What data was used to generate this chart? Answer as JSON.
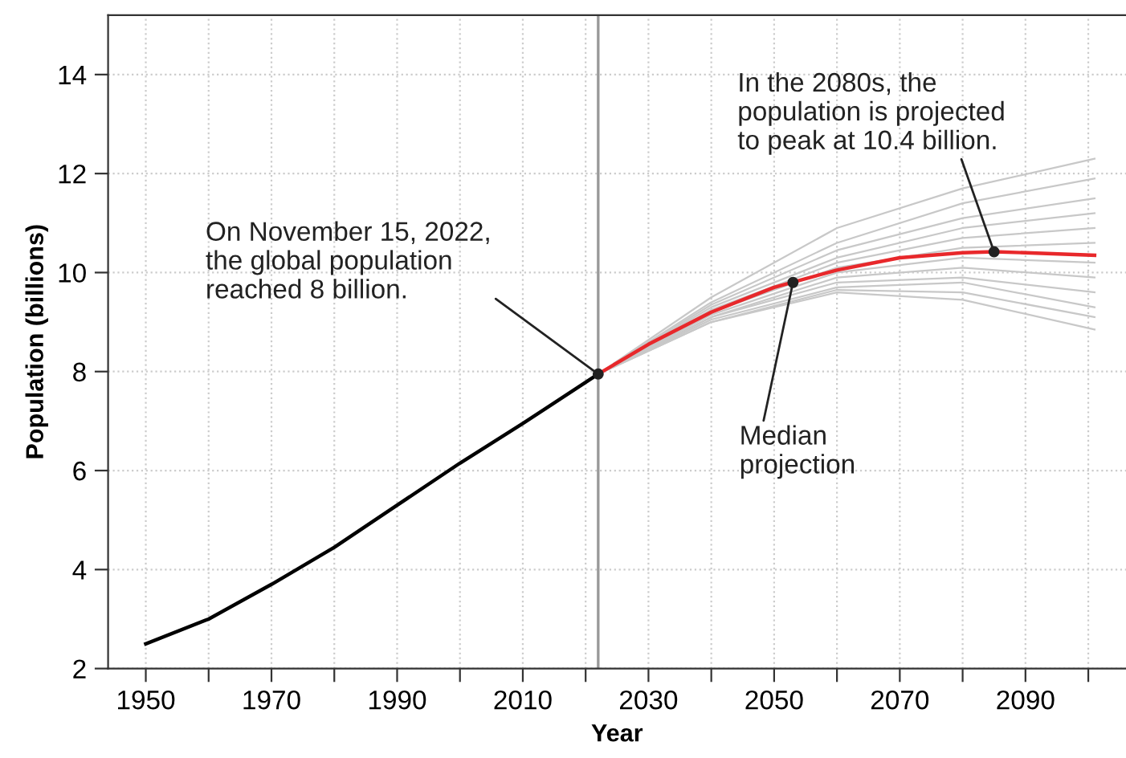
{
  "chart_data": {
    "type": "line",
    "xlabel": "Year",
    "ylabel": "Population (billions)",
    "xlim": [
      1944,
      2106
    ],
    "ylim": [
      2,
      15.2
    ],
    "xticks": [
      1950,
      {
        "value": 1960,
        "label": null
      },
      1970,
      {
        "value": 1980,
        "label": null
      },
      1990,
      {
        "value": 2000,
        "label": null
      },
      2010,
      {
        "value": 2020,
        "label": null
      },
      2030,
      {
        "value": 2040,
        "label": null
      },
      2050,
      {
        "value": 2060,
        "label": null
      },
      2070,
      {
        "value": 2080,
        "label": null
      },
      2090,
      {
        "value": 2100,
        "label": null
      }
    ],
    "yticks": [
      2,
      4,
      6,
      8,
      10,
      12,
      14
    ],
    "grid": true,
    "line_style": "solid",
    "ref_lines": [
      {
        "axis": "x",
        "value": 2022,
        "label": null,
        "color": "#999999"
      }
    ],
    "series": [
      {
        "color": "#c8c8c8",
        "x": [
          2022,
          2040,
          2060,
          2080,
          2101
        ],
        "values": [
          7.95,
          9.5,
          10.9,
          11.7,
          12.3
        ]
      },
      {
        "color": "#c8c8c8",
        "x": [
          2022,
          2040,
          2060,
          2080,
          2101
        ],
        "values": [
          7.95,
          9.4,
          10.6,
          11.4,
          11.9
        ]
      },
      {
        "color": "#c8c8c8",
        "x": [
          2022,
          2040,
          2060,
          2080,
          2101
        ],
        "values": [
          7.95,
          9.35,
          10.45,
          11.1,
          11.5
        ]
      },
      {
        "color": "#c8c8c8",
        "x": [
          2022,
          2040,
          2060,
          2080,
          2101
        ],
        "values": [
          7.95,
          9.3,
          10.3,
          10.9,
          11.2
        ]
      },
      {
        "color": "#c8c8c8",
        "x": [
          2022,
          2040,
          2060,
          2080,
          2101
        ],
        "values": [
          7.95,
          9.25,
          10.2,
          10.7,
          10.9
        ]
      },
      {
        "color": "#c8c8c8",
        "x": [
          2022,
          2040,
          2060,
          2080,
          2101
        ],
        "values": [
          7.95,
          9.2,
          10.1,
          10.5,
          10.6
        ]
      },
      {
        "color": "#c8c8c8",
        "x": [
          2022,
          2040,
          2060,
          2080,
          2101
        ],
        "values": [
          7.95,
          9.15,
          10.0,
          10.3,
          10.2
        ]
      },
      {
        "color": "#c8c8c8",
        "x": [
          2022,
          2040,
          2060,
          2080,
          2101
        ],
        "values": [
          7.95,
          9.1,
          9.9,
          10.1,
          9.9
        ]
      },
      {
        "color": "#c8c8c8",
        "x": [
          2022,
          2040,
          2060,
          2080,
          2101
        ],
        "values": [
          7.95,
          9.1,
          9.8,
          9.9,
          9.6
        ]
      },
      {
        "color": "#c8c8c8",
        "x": [
          2022,
          2040,
          2060,
          2080,
          2101
        ],
        "values": [
          7.95,
          9.05,
          9.7,
          9.8,
          9.3
        ]
      },
      {
        "color": "#c8c8c8",
        "x": [
          2022,
          2040,
          2060,
          2080,
          2101
        ],
        "values": [
          7.95,
          9.0,
          9.65,
          9.6,
          9.1
        ]
      },
      {
        "color": "#c8c8c8",
        "x": [
          2022,
          2040,
          2060,
          2080,
          2101
        ],
        "values": [
          7.95,
          9.0,
          9.6,
          9.45,
          8.85
        ]
      },
      {
        "color": "#000000",
        "x": [
          1950,
          1960,
          1970,
          1980,
          1990,
          2000,
          2010,
          2022
        ],
        "values": [
          2.5,
          3.0,
          3.7,
          4.45,
          5.3,
          6.15,
          6.95,
          7.95
        ]
      },
      {
        "color": "#e8282b",
        "x": [
          2022,
          2030,
          2040,
          2050,
          2060,
          2070,
          2080,
          2085,
          2090,
          2101
        ],
        "values": [
          7.95,
          8.55,
          9.2,
          9.7,
          10.05,
          10.3,
          10.4,
          10.42,
          10.4,
          10.35
        ]
      }
    ],
    "annotations": [
      {
        "text": "On November 15, 2022,\nthe global population\nreached 8 billion.",
        "x": 2022,
        "y": 7.95
      },
      {
        "text": "In the 2080s, the\npopulation is projected\nto peak at 10.4 billion.",
        "x": 2085,
        "y": 10.42
      },
      {
        "text": "Median\nprojection",
        "x": 2053,
        "y": 9.8
      }
    ]
  }
}
